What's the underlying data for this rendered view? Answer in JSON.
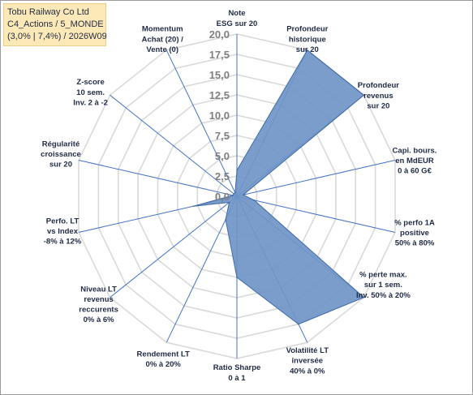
{
  "title_box": {
    "line1": "Tobu Railway Co Ltd",
    "line2": "C4_Actions / 5_MONDE",
    "line3": "(3,0% | 7,4%) / 2026W09"
  },
  "chart_data": {
    "type": "radar",
    "r_min": 0,
    "r_max": 20,
    "tick_step": 2.5,
    "tick_labels": [
      "0,0",
      "2,5",
      "5,0",
      "7,5",
      "10,0",
      "12,5",
      "15,0",
      "17,5",
      "20,0"
    ],
    "axes": [
      [
        "Note",
        "ESG sur 20"
      ],
      [
        "Profondeur",
        "historique",
        "sur 20"
      ],
      [
        "Profondeur",
        "revenus",
        "sur 20"
      ],
      [
        "Capi. bours.",
        "en MdEUR",
        "0 à 60 G€"
      ],
      [
        "% perfo 1A",
        "positive",
        "50% à 80%"
      ],
      [
        "% perte max.",
        "sur 1 sem.",
        "Inv. 50% à 20%"
      ],
      [
        "Volatilité LT",
        "inversée",
        "40% à 0%"
      ],
      [
        "Ratio Sharpe",
        "0 à 1"
      ],
      [
        "Rendement LT",
        "0% à 20%"
      ],
      [
        "Niveau LT",
        "revenus",
        "reccurents",
        "0% à 6%"
      ],
      [
        "Perfo. LT",
        "vs Index",
        "-8% à 12%"
      ],
      [
        "Régularité",
        "croissance",
        "sur 20"
      ],
      [
        "Z-score",
        "10 sem.",
        "Inv. 2 à -2"
      ],
      [
        "Momentum",
        "Achat (20) /",
        "Vente (0)"
      ]
    ],
    "series": [
      {
        "values": [
          3.2,
          20,
          20,
          0.8,
          2.2,
          20,
          17.5,
          10,
          3.2,
          1.2,
          5.5,
          0.5,
          0.5,
          0.5
        ]
      }
    ],
    "fill_color": "#6f95c7",
    "stroke_color": "#3d6aa6",
    "grid_color": "#d9d9d9",
    "spoke_color": "#4472c4",
    "grid": true
  }
}
